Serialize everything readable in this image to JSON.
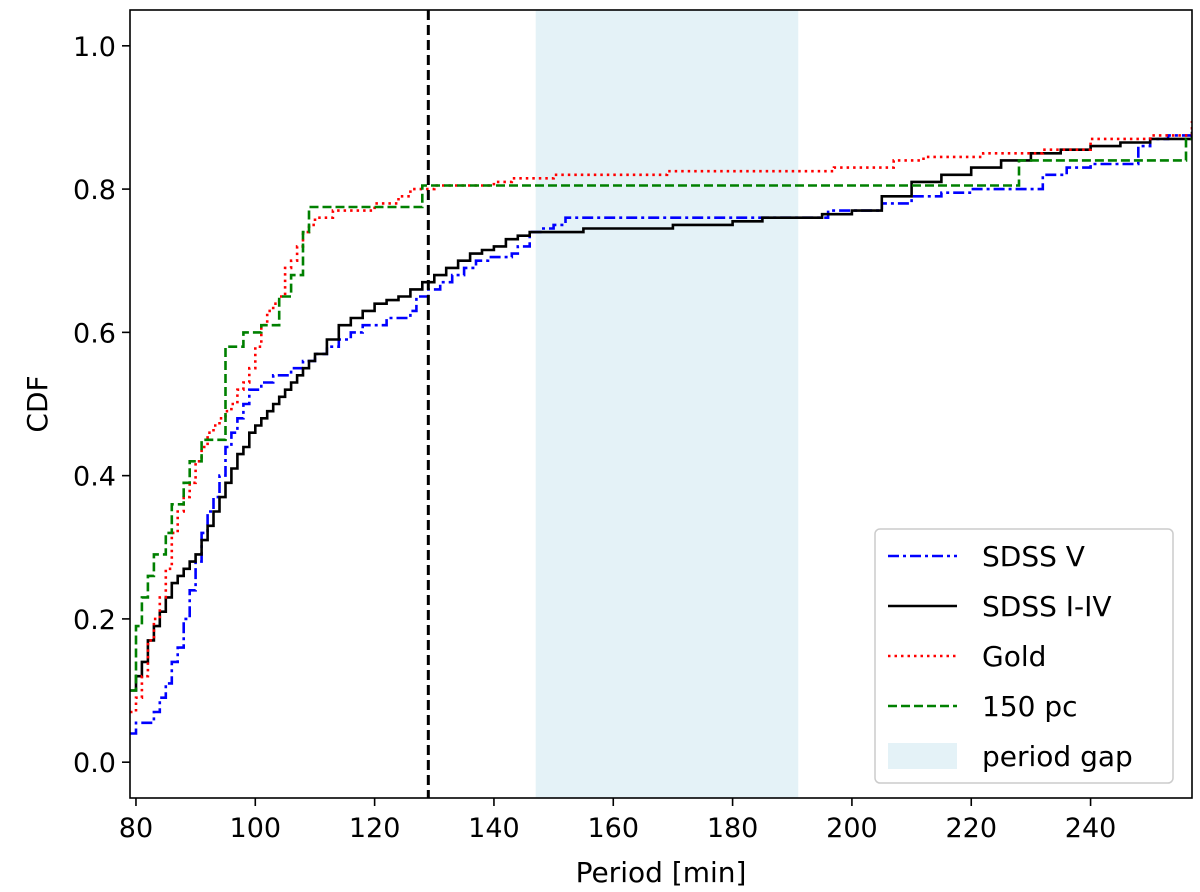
{
  "chart_data": {
    "type": "line",
    "title": "",
    "xlabel": "Period [min]",
    "ylabel": "CDF",
    "xlim": [
      79,
      257
    ],
    "ylim": [
      -0.05,
      1.05
    ],
    "xticks": [
      80,
      100,
      120,
      140,
      160,
      180,
      200,
      220,
      240
    ],
    "yticks": [
      0.0,
      0.2,
      0.4,
      0.6,
      0.8,
      1.0
    ],
    "xtick_labels": [
      "80",
      "100",
      "120",
      "140",
      "160",
      "180",
      "200",
      "220",
      "240"
    ],
    "ytick_labels": [
      "0.0",
      "0.2",
      "0.4",
      "0.6",
      "0.8",
      "1.0"
    ],
    "grid": false,
    "legend_position": "bottom-right",
    "vline": {
      "x": 129,
      "color": "#000000",
      "style": "dashed"
    },
    "shaded_region": {
      "name": "period gap",
      "x": [
        147,
        191
      ],
      "color": "#add8e6"
    },
    "series": [
      {
        "name": "SDSS V",
        "color": "#0000ff",
        "style": "dashdot",
        "x": [
          79,
          80,
          83,
          84,
          85,
          86,
          87,
          88,
          89,
          90,
          91,
          92,
          93,
          94,
          95,
          96,
          97,
          98,
          99,
          100,
          101,
          103,
          105,
          106,
          108,
          110,
          112,
          114,
          116,
          118,
          120,
          122,
          124,
          126,
          127,
          129,
          131,
          133,
          135,
          137,
          139,
          141,
          143,
          144,
          146,
          148,
          150,
          152,
          154,
          156,
          170,
          180,
          190,
          196,
          200,
          205,
          210,
          215,
          220,
          226,
          232,
          236,
          240,
          245,
          248,
          250,
          253,
          257
        ],
        "y": [
          0.04,
          0.055,
          0.07,
          0.09,
          0.11,
          0.14,
          0.16,
          0.2,
          0.24,
          0.28,
          0.32,
          0.35,
          0.37,
          0.4,
          0.44,
          0.46,
          0.48,
          0.5,
          0.52,
          0.52,
          0.53,
          0.54,
          0.54,
          0.55,
          0.56,
          0.57,
          0.58,
          0.59,
          0.6,
          0.61,
          0.61,
          0.62,
          0.62,
          0.63,
          0.65,
          0.66,
          0.67,
          0.68,
          0.69,
          0.7,
          0.705,
          0.705,
          0.71,
          0.72,
          0.74,
          0.745,
          0.75,
          0.76,
          0.76,
          0.76,
          0.76,
          0.76,
          0.76,
          0.77,
          0.77,
          0.78,
          0.79,
          0.795,
          0.8,
          0.8,
          0.82,
          0.83,
          0.835,
          0.835,
          0.86,
          0.87,
          0.875,
          0.875
        ]
      },
      {
        "name": "SDSS I-IV",
        "color": "#000000",
        "style": "solid",
        "x": [
          79,
          80,
          81,
          82,
          83,
          84,
          85,
          86,
          87,
          88,
          89,
          90,
          91,
          92,
          93,
          94,
          95,
          96,
          97,
          98,
          99,
          100,
          101,
          102,
          103,
          104,
          105,
          106,
          107,
          108,
          109,
          110,
          112,
          114,
          116,
          118,
          120,
          122,
          124,
          126,
          128,
          130,
          132,
          134,
          136,
          138,
          140,
          142,
          144,
          146,
          150,
          155,
          160,
          170,
          180,
          185,
          190,
          195,
          200,
          205,
          210,
          215,
          220,
          225,
          230,
          235,
          240,
          245,
          250,
          257
        ],
        "y": [
          0.1,
          0.12,
          0.14,
          0.17,
          0.19,
          0.21,
          0.23,
          0.25,
          0.26,
          0.27,
          0.28,
          0.29,
          0.31,
          0.33,
          0.35,
          0.37,
          0.39,
          0.41,
          0.43,
          0.44,
          0.46,
          0.47,
          0.48,
          0.49,
          0.5,
          0.51,
          0.52,
          0.53,
          0.54,
          0.55,
          0.56,
          0.57,
          0.59,
          0.61,
          0.62,
          0.63,
          0.64,
          0.645,
          0.65,
          0.66,
          0.67,
          0.68,
          0.69,
          0.7,
          0.71,
          0.715,
          0.72,
          0.73,
          0.735,
          0.74,
          0.74,
          0.745,
          0.745,
          0.75,
          0.755,
          0.76,
          0.76,
          0.765,
          0.77,
          0.79,
          0.81,
          0.82,
          0.83,
          0.84,
          0.85,
          0.855,
          0.86,
          0.865,
          0.87,
          0.88
        ]
      },
      {
        "name": "Gold",
        "color": "#ff0000",
        "style": "dotted",
        "x": [
          79,
          80,
          81,
          82,
          83,
          84,
          85,
          86,
          87,
          88,
          89,
          90,
          91,
          92,
          93,
          94,
          95,
          96,
          97,
          98,
          99,
          100,
          101,
          102,
          103,
          104,
          105,
          106,
          107,
          108,
          109,
          110,
          113,
          117,
          120,
          124,
          126,
          130,
          135,
          140,
          143,
          150,
          160,
          169,
          180,
          190,
          197,
          207,
          212,
          222,
          232,
          240,
          250,
          257
        ],
        "y": [
          0.07,
          0.09,
          0.12,
          0.17,
          0.2,
          0.23,
          0.27,
          0.32,
          0.35,
          0.37,
          0.39,
          0.42,
          0.44,
          0.46,
          0.47,
          0.48,
          0.49,
          0.5,
          0.52,
          0.53,
          0.55,
          0.58,
          0.61,
          0.63,
          0.64,
          0.65,
          0.69,
          0.7,
          0.72,
          0.74,
          0.75,
          0.76,
          0.77,
          0.77,
          0.78,
          0.79,
          0.8,
          0.805,
          0.805,
          0.81,
          0.815,
          0.82,
          0.82,
          0.825,
          0.825,
          0.825,
          0.83,
          0.84,
          0.845,
          0.85,
          0.855,
          0.87,
          0.875,
          0.895
        ]
      },
      {
        "name": "150 pc",
        "color": "#008000",
        "style": "dashed",
        "x": [
          79,
          80,
          81,
          82,
          83,
          85,
          86,
          88,
          89,
          91,
          95,
          98,
          101,
          104,
          106,
          108,
          109,
          112,
          118,
          121,
          126,
          128,
          131,
          140,
          150,
          160,
          180,
          200,
          210,
          228,
          240,
          245,
          256,
          257
        ],
        "y": [
          0.1,
          0.19,
          0.23,
          0.26,
          0.29,
          0.32,
          0.36,
          0.39,
          0.42,
          0.45,
          0.58,
          0.6,
          0.61,
          0.65,
          0.68,
          0.74,
          0.775,
          0.775,
          0.775,
          0.775,
          0.775,
          0.805,
          0.805,
          0.805,
          0.805,
          0.805,
          0.805,
          0.805,
          0.805,
          0.84,
          0.84,
          0.84,
          0.87,
          0.87
        ]
      }
    ]
  }
}
